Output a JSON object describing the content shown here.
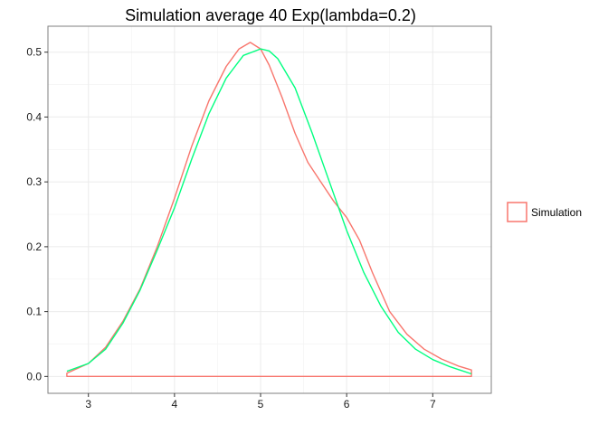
{
  "chart_data": {
    "type": "line",
    "title": "Simulation average 40 Exp(lambda=0.2)",
    "xlabel": "",
    "ylabel": "",
    "xlim": [
      2.53,
      7.68
    ],
    "ylim": [
      -0.026,
      0.54
    ],
    "x_ticks": [
      3,
      4,
      5,
      6,
      7
    ],
    "y_ticks": [
      0.0,
      0.1,
      0.2,
      0.3,
      0.4,
      0.5
    ],
    "y_tick_labels": [
      "0.0",
      "0.1",
      "0.2",
      "0.3",
      "0.4",
      "0.5"
    ],
    "grid": true,
    "legend_position": "right",
    "legend": [
      {
        "label": "Simulation",
        "color": "#f8766d"
      }
    ],
    "series": [
      {
        "style": "density-outline",
        "color": "#f8766d",
        "points": [
          [
            2.75,
            0.005
          ],
          [
            3.0,
            0.02
          ],
          [
            3.2,
            0.045
          ],
          [
            3.4,
            0.085
          ],
          [
            3.6,
            0.135
          ],
          [
            3.8,
            0.2
          ],
          [
            4.0,
            0.275
          ],
          [
            4.2,
            0.355
          ],
          [
            4.4,
            0.425
          ],
          [
            4.6,
            0.478
          ],
          [
            4.75,
            0.505
          ],
          [
            4.88,
            0.515
          ],
          [
            5.0,
            0.505
          ],
          [
            5.1,
            0.48
          ],
          [
            5.25,
            0.43
          ],
          [
            5.4,
            0.375
          ],
          [
            5.55,
            0.33
          ],
          [
            5.7,
            0.3
          ],
          [
            5.85,
            0.27
          ],
          [
            6.0,
            0.245
          ],
          [
            6.15,
            0.21
          ],
          [
            6.3,
            0.16
          ],
          [
            6.5,
            0.1
          ],
          [
            6.7,
            0.065
          ],
          [
            6.9,
            0.042
          ],
          [
            7.1,
            0.027
          ],
          [
            7.3,
            0.016
          ],
          [
            7.45,
            0.01
          ]
        ]
      },
      {
        "style": "line",
        "color": "#00ff7f",
        "points": [
          [
            2.75,
            0.008
          ],
          [
            3.0,
            0.02
          ],
          [
            3.2,
            0.042
          ],
          [
            3.4,
            0.082
          ],
          [
            3.6,
            0.133
          ],
          [
            3.8,
            0.195
          ],
          [
            4.0,
            0.26
          ],
          [
            4.2,
            0.335
          ],
          [
            4.4,
            0.405
          ],
          [
            4.6,
            0.46
          ],
          [
            4.8,
            0.495
          ],
          [
            5.0,
            0.505
          ],
          [
            5.1,
            0.502
          ],
          [
            5.2,
            0.49
          ],
          [
            5.4,
            0.445
          ],
          [
            5.6,
            0.375
          ],
          [
            5.8,
            0.3
          ],
          [
            6.0,
            0.225
          ],
          [
            6.2,
            0.16
          ],
          [
            6.4,
            0.108
          ],
          [
            6.6,
            0.068
          ],
          [
            6.8,
            0.042
          ],
          [
            7.0,
            0.026
          ],
          [
            7.2,
            0.015
          ],
          [
            7.45,
            0.004
          ]
        ]
      }
    ]
  }
}
